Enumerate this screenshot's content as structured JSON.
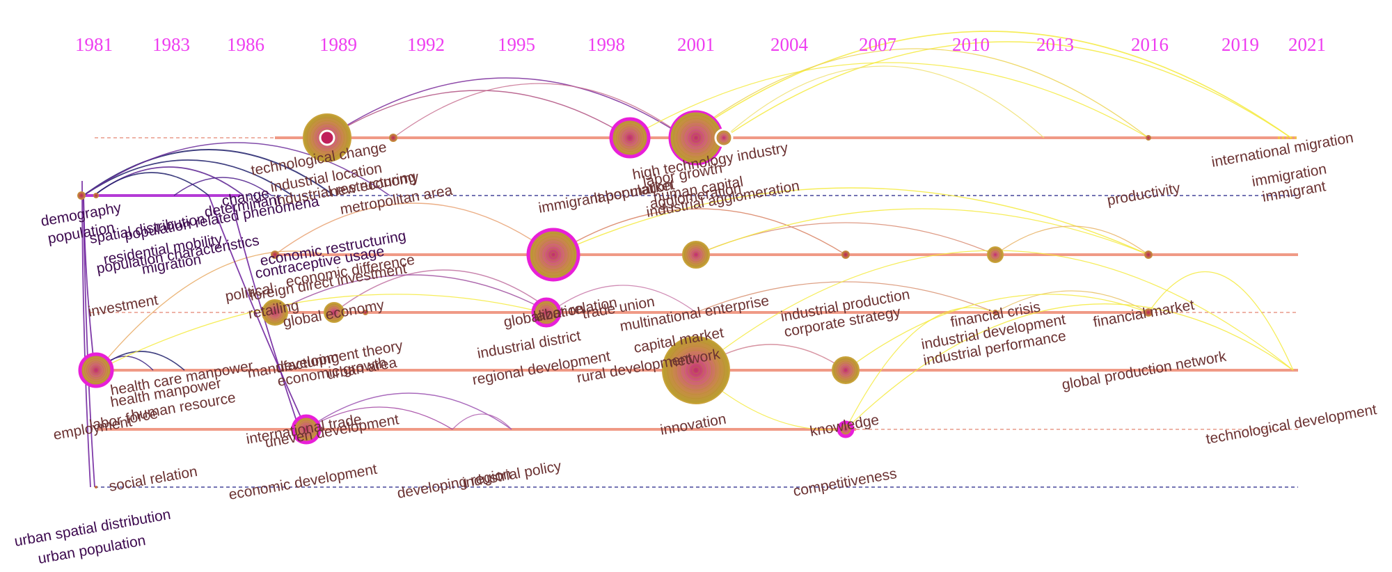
{
  "years": [
    "1981",
    "1983",
    "1986",
    "1989",
    "1992",
    "1995",
    "1998",
    "2001",
    "2004",
    "2007",
    "2010",
    "2013",
    "2016",
    "2019",
    "2021"
  ],
  "colors": {
    "year_label": "#ee3ef0",
    "keyword_dark": "#3d0a4f",
    "keyword_brown": "#6b3232",
    "timeline_solid": "#f09a86",
    "timeline_dashed_red": "#e89a8a",
    "timeline_dashed_blue": "#45459a",
    "node_gold": "#c9a23a",
    "node_magenta": "#e81fd8",
    "arc_yellow": "#f5ea3c",
    "arc_orange": "#e8a860",
    "arc_purple": "#7a2a9a",
    "arc_navy": "#1e1e6a"
  },
  "keywords": [
    "technological change",
    "industrial location",
    "industrial restructuring",
    "new economy",
    "metropolitan area",
    "high technology industry",
    "labor growth",
    "immigrant population",
    "labor market",
    "human capital",
    "agglomeration",
    "industrial agglomeration",
    "productivity",
    "international migration",
    "immigration",
    "immigrant",
    "demography",
    "population",
    "spatial distribution",
    "change",
    "residential mobility",
    "population related phenomena",
    "determinant",
    "population characteristics",
    "migration",
    "economic restructuring",
    "contraceptive usage",
    "political",
    "economic difference",
    "foreign direct investment",
    "investment",
    "retailing",
    "global economy",
    "globalization",
    "labor relation",
    "trade union",
    "multinational enterprise",
    "industrial production",
    "corporate strategy",
    "financial crisis",
    "financial market",
    "industrial district",
    "regional development",
    "rural development",
    "capital market",
    "network",
    "manufacturing",
    "development theory",
    "economic growth",
    "urban area",
    "health care manpower",
    "health manpower",
    "employment",
    "labor force",
    "human resource",
    "industrial development",
    "industrial performance",
    "global production network",
    "international trade",
    "uneven development",
    "innovation",
    "knowledge",
    "technological development",
    "social relation",
    "economic development",
    "developing region",
    "industrial policy",
    "competitiveness",
    "urban spatial distribution",
    "urban population"
  ]
}
